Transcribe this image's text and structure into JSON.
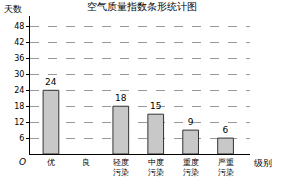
{
  "chart_data": {
    "type": "bar",
    "title": "空气质量指数条形统计图",
    "y_label": "天数",
    "x_label": "级别",
    "origin_label": "O",
    "categories": [
      "优",
      "良",
      "轻度污染",
      "中度污染",
      "重度污染",
      "严重污染"
    ],
    "values": [
      24,
      null,
      18,
      15,
      9,
      6
    ],
    "color": "#c8c8c8",
    "ylim": [
      0,
      52
    ],
    "yticks": [
      6,
      12,
      18,
      24,
      30,
      36,
      42,
      48
    ],
    "grid": true,
    "data_labels": true
  }
}
